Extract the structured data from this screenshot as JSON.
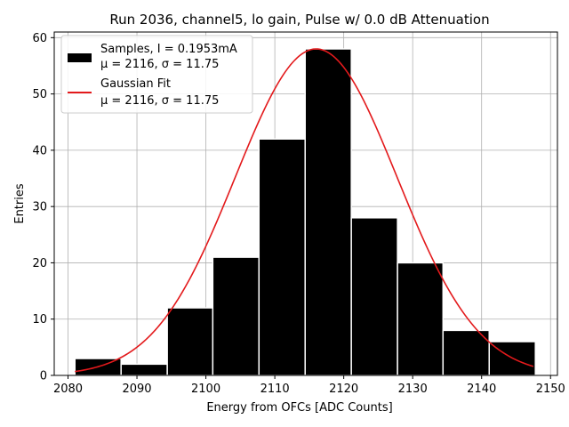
{
  "chart_data": {
    "type": "bar",
    "title": "Run 2036, channel5, lo gain, Pulse w/ 0.0 dB Attenuation",
    "xlabel": "Energy from OFCs [ADC Counts]",
    "ylabel": "Entries",
    "xlim": [
      2078,
      2151
    ],
    "ylim": [
      0,
      61
    ],
    "xticks": [
      2080,
      2090,
      2100,
      2110,
      2120,
      2130,
      2140,
      2150
    ],
    "yticks": [
      0,
      10,
      20,
      30,
      40,
      50,
      60
    ],
    "grid": true,
    "legend_position": "top-left",
    "bins": [
      {
        "x0": 2081.0,
        "x1": 2087.7,
        "count": 3
      },
      {
        "x0": 2087.7,
        "x1": 2094.4,
        "count": 2
      },
      {
        "x0": 2094.4,
        "x1": 2101.0,
        "count": 12
      },
      {
        "x0": 2101.0,
        "x1": 2107.7,
        "count": 21
      },
      {
        "x0": 2107.7,
        "x1": 2114.4,
        "count": 42
      },
      {
        "x0": 2114.4,
        "x1": 2121.1,
        "count": 58
      },
      {
        "x0": 2121.1,
        "x1": 2127.8,
        "count": 28
      },
      {
        "x0": 2127.8,
        "x1": 2134.4,
        "count": 20
      },
      {
        "x0": 2134.4,
        "x1": 2141.1,
        "count": 8
      },
      {
        "x0": 2141.1,
        "x1": 2147.8,
        "count": 6
      }
    ],
    "fit": {
      "type": "gaussian",
      "mu": 2116,
      "sigma": 11.75,
      "amplitude": 58,
      "x_range": [
        2081.0,
        2147.5
      ],
      "color": "#e31a1c"
    },
    "series": [
      {
        "name": "Samples",
        "legend_line1": "Samples, I = 0.1953mA",
        "legend_line2": "μ = 2116, σ = 11.75",
        "color": "#000000"
      },
      {
        "name": "Gaussian Fit",
        "legend_line1": "Gaussian Fit",
        "legend_line2": "μ = 2116, σ = 11.75",
        "color": "#e31a1c"
      }
    ]
  }
}
